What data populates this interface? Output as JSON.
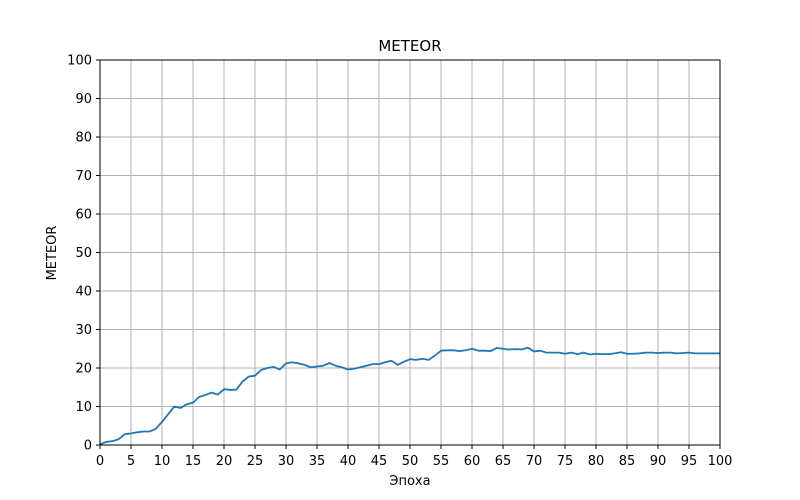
{
  "chart_data": {
    "type": "line",
    "title": "METEOR",
    "xlabel": "Эпоха",
    "ylabel": "METEOR",
    "xlim": [
      0,
      100
    ],
    "ylim": [
      0,
      100
    ],
    "xticks": [
      0,
      5,
      10,
      15,
      20,
      25,
      30,
      35,
      40,
      45,
      50,
      55,
      60,
      65,
      70,
      75,
      80,
      85,
      90,
      95,
      100
    ],
    "yticks": [
      0,
      10,
      20,
      30,
      40,
      50,
      60,
      70,
      80,
      90,
      100
    ],
    "grid": true,
    "line_color": "#1f77b4",
    "series": [
      {
        "x": [
          0,
          1,
          2,
          3,
          4,
          5,
          6,
          7,
          8,
          9,
          10,
          11,
          12,
          13,
          14,
          15,
          16,
          17,
          18,
          19,
          20,
          21,
          22,
          23,
          24,
          25,
          26,
          27,
          28,
          29,
          30,
          31,
          32,
          33,
          34,
          35,
          36,
          37,
          38,
          39,
          40,
          41,
          42,
          43,
          44,
          45,
          46,
          47,
          48,
          49,
          50,
          51,
          52,
          53,
          54,
          55,
          56,
          57,
          58,
          59,
          60,
          61,
          62,
          63,
          64,
          65,
          66,
          67,
          68,
          69,
          70,
          71,
          72,
          73,
          74,
          75,
          76,
          77,
          78,
          79,
          80,
          81,
          82,
          83,
          84,
          85,
          86,
          87,
          88,
          89,
          90,
          91,
          92,
          93,
          94,
          95,
          96,
          97,
          98,
          99,
          100
        ],
        "values": [
          0.2,
          0.8,
          1.0,
          1.5,
          2.8,
          3.0,
          3.3,
          3.5,
          3.5,
          4.2,
          6.0,
          8.0,
          10.0,
          9.6,
          10.6,
          11.0,
          12.5,
          13.0,
          13.6,
          13.1,
          14.5,
          14.3,
          14.4,
          16.5,
          17.8,
          18.0,
          19.5,
          20.0,
          20.3,
          19.6,
          21.2,
          21.5,
          21.2,
          20.8,
          20.2,
          20.4,
          20.6,
          21.3,
          20.6,
          20.2,
          19.6,
          19.8,
          20.2,
          20.6,
          21.0,
          21.0,
          21.5,
          21.9,
          20.8,
          21.6,
          22.3,
          22.1,
          22.4,
          22.1,
          23.2,
          24.5,
          24.6,
          24.6,
          24.4,
          24.6,
          25.0,
          24.5,
          24.5,
          24.4,
          25.2,
          25.0,
          24.8,
          24.9,
          24.8,
          25.3,
          24.3,
          24.5,
          24.0,
          24.0,
          24.0,
          23.7,
          24.0,
          23.6,
          24.0,
          23.5,
          23.7,
          23.6,
          23.6,
          23.8,
          24.1,
          23.7,
          23.7,
          23.8,
          24.0,
          24.0,
          23.9,
          24.0,
          24.0,
          23.8,
          23.9,
          24.0,
          23.8,
          23.8,
          23.8,
          23.8,
          23.8
        ]
      }
    ]
  }
}
